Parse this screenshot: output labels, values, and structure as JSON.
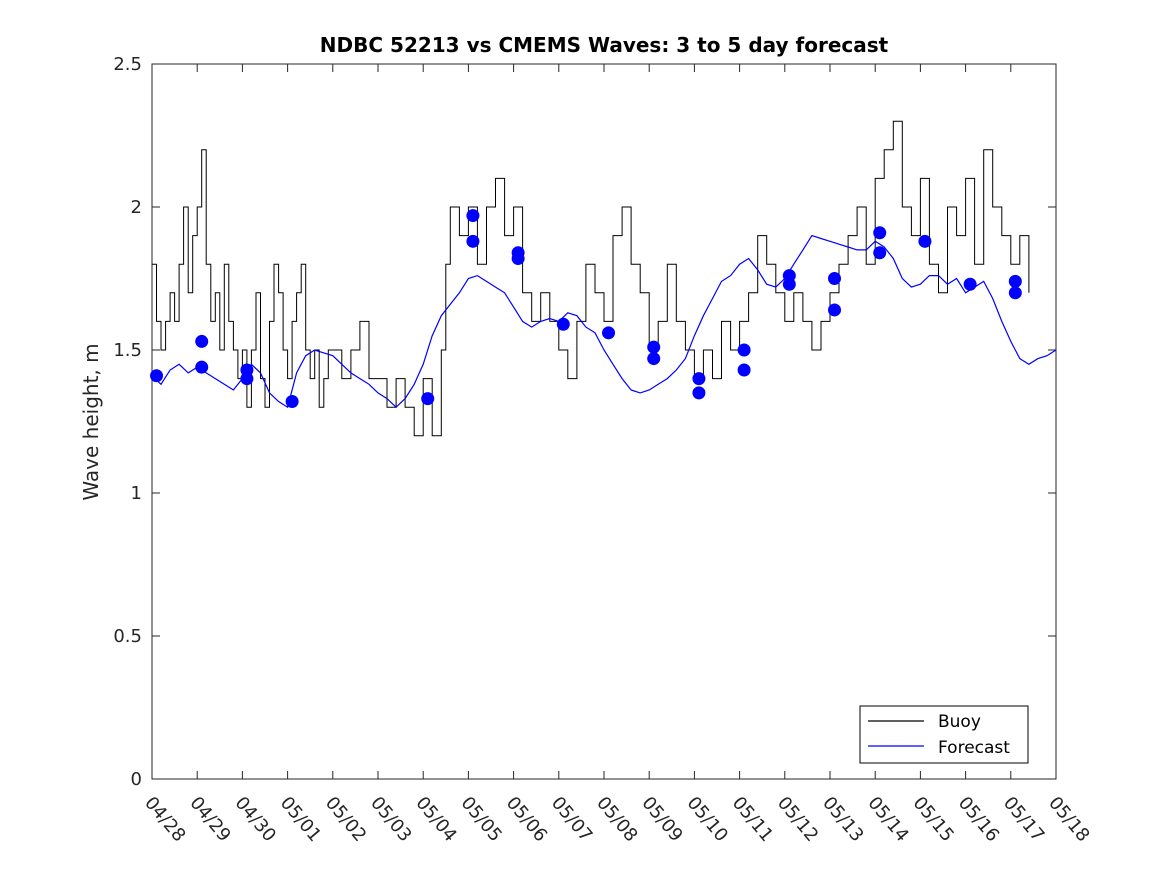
{
  "chart_data": {
    "type": "line",
    "title": "NDBC 52213 vs CMEMS Waves: 3 to 5 day forecast",
    "xlabel": "",
    "ylabel": "Wave height, m",
    "xlim": [
      "04/28",
      "05/18"
    ],
    "ylim": [
      0,
      2.5
    ],
    "yticks": [
      "0",
      "0.5",
      "1",
      "1.5",
      "2",
      "2.5"
    ],
    "xticks": [
      "04/28",
      "04/29",
      "04/30",
      "05/01",
      "05/02",
      "05/03",
      "05/04",
      "05/05",
      "05/06",
      "05/07",
      "05/08",
      "05/09",
      "05/10",
      "05/11",
      "05/12",
      "05/13",
      "05/14",
      "05/15",
      "05/16",
      "05/17",
      "05/18"
    ],
    "grid": false,
    "legend_position": "bottom-right",
    "colors": {
      "buoy": "#000000",
      "forecast": "#0000ff"
    },
    "series": [
      {
        "name": "Buoy",
        "x_days_from_04_28": [
          0.0,
          0.1,
          0.2,
          0.3,
          0.4,
          0.5,
          0.6,
          0.7,
          0.8,
          0.9,
          1.0,
          1.1,
          1.2,
          1.3,
          1.4,
          1.5,
          1.6,
          1.7,
          1.8,
          1.9,
          2.0,
          2.1,
          2.2,
          2.3,
          2.4,
          2.5,
          2.6,
          2.7,
          2.8,
          2.9,
          3.0,
          3.1,
          3.2,
          3.3,
          3.4,
          3.5,
          3.6,
          3.7,
          3.8,
          3.9,
          4.0,
          4.2,
          4.4,
          4.6,
          4.8,
          5.0,
          5.2,
          5.4,
          5.6,
          5.8,
          6.0,
          6.2,
          6.4,
          6.5,
          6.6,
          6.8,
          7.0,
          7.2,
          7.4,
          7.6,
          7.8,
          8.0,
          8.2,
          8.4,
          8.6,
          8.8,
          9.0,
          9.2,
          9.4,
          9.6,
          9.8,
          10.0,
          10.2,
          10.4,
          10.6,
          10.8,
          11.0,
          11.2,
          11.4,
          11.6,
          11.8,
          12.0,
          12.2,
          12.4,
          12.6,
          12.8,
          13.0,
          13.2,
          13.4,
          13.6,
          13.8,
          14.0,
          14.2,
          14.4,
          14.6,
          14.8,
          15.0,
          15.2,
          15.4,
          15.6,
          15.8,
          16.0,
          16.2,
          16.4,
          16.6,
          16.8,
          17.0,
          17.2,
          17.4,
          17.6,
          17.8,
          18.0,
          18.2,
          18.4,
          18.6,
          18.8,
          19.0,
          19.2,
          19.4
        ],
        "values": [
          1.8,
          1.6,
          1.5,
          1.6,
          1.7,
          1.6,
          1.8,
          2.0,
          1.7,
          1.9,
          2.0,
          2.2,
          1.8,
          1.6,
          1.7,
          1.5,
          1.8,
          1.6,
          1.5,
          1.4,
          1.5,
          1.3,
          1.5,
          1.7,
          1.4,
          1.3,
          1.6,
          1.8,
          1.7,
          1.5,
          1.4,
          1.6,
          1.7,
          1.8,
          1.5,
          1.4,
          1.5,
          1.3,
          1.4,
          1.5,
          1.5,
          1.4,
          1.5,
          1.6,
          1.4,
          1.4,
          1.3,
          1.4,
          1.3,
          1.2,
          1.4,
          1.2,
          1.5,
          1.8,
          2.0,
          1.9,
          2.0,
          1.8,
          2.0,
          2.1,
          1.9,
          2.0,
          1.7,
          1.6,
          1.7,
          1.6,
          1.5,
          1.4,
          1.6,
          1.8,
          1.7,
          1.6,
          1.9,
          2.0,
          1.8,
          1.7,
          1.5,
          1.6,
          1.8,
          1.6,
          1.5,
          1.4,
          1.5,
          1.4,
          1.6,
          1.5,
          1.6,
          1.7,
          1.9,
          1.8,
          1.7,
          1.6,
          1.7,
          1.6,
          1.5,
          1.6,
          1.7,
          1.8,
          1.9,
          2.0,
          1.8,
          2.1,
          2.2,
          2.3,
          2.0,
          1.9,
          2.1,
          1.8,
          1.7,
          2.0,
          1.9,
          2.1,
          1.8,
          2.2,
          2.0,
          1.9,
          1.8,
          1.9,
          1.7
        ]
      },
      {
        "name": "Forecast",
        "x_days_from_04_28": [
          0.0,
          0.2,
          0.4,
          0.6,
          0.8,
          1.0,
          1.2,
          1.4,
          1.6,
          1.8,
          2.0,
          2.2,
          2.4,
          2.6,
          2.8,
          3.0,
          3.2,
          3.4,
          3.6,
          3.8,
          4.0,
          4.2,
          4.4,
          4.6,
          4.8,
          5.0,
          5.2,
          5.4,
          5.6,
          5.8,
          6.0,
          6.2,
          6.4,
          6.6,
          6.8,
          7.0,
          7.2,
          7.4,
          7.6,
          7.8,
          8.0,
          8.2,
          8.4,
          8.6,
          8.8,
          9.0,
          9.2,
          9.4,
          9.6,
          9.8,
          10.0,
          10.2,
          10.4,
          10.6,
          10.8,
          11.0,
          11.2,
          11.4,
          11.6,
          11.8,
          12.0,
          12.2,
          12.4,
          12.6,
          12.8,
          13.0,
          13.2,
          13.4,
          13.6,
          13.8,
          14.0,
          14.2,
          14.4,
          14.6,
          14.8,
          15.0,
          15.2,
          15.4,
          15.6,
          15.8,
          16.0,
          16.2,
          16.4,
          16.6,
          16.8,
          17.0,
          17.2,
          17.4,
          17.6,
          17.8,
          18.0,
          18.2,
          18.4,
          18.6,
          18.8,
          19.0,
          19.2,
          19.4,
          19.6,
          19.8,
          20.0
        ],
        "values": [
          1.41,
          1.38,
          1.43,
          1.45,
          1.42,
          1.44,
          1.42,
          1.4,
          1.38,
          1.36,
          1.4,
          1.45,
          1.42,
          1.35,
          1.32,
          1.3,
          1.42,
          1.48,
          1.5,
          1.49,
          1.48,
          1.45,
          1.42,
          1.4,
          1.38,
          1.35,
          1.33,
          1.3,
          1.33,
          1.38,
          1.45,
          1.55,
          1.62,
          1.66,
          1.7,
          1.75,
          1.76,
          1.74,
          1.72,
          1.7,
          1.65,
          1.6,
          1.58,
          1.6,
          1.61,
          1.6,
          1.63,
          1.62,
          1.58,
          1.56,
          1.5,
          1.45,
          1.4,
          1.36,
          1.35,
          1.36,
          1.38,
          1.4,
          1.43,
          1.47,
          1.55,
          1.62,
          1.68,
          1.74,
          1.76,
          1.8,
          1.82,
          1.78,
          1.73,
          1.72,
          1.75,
          1.8,
          1.85,
          1.9,
          1.89,
          1.88,
          1.87,
          1.86,
          1.85,
          1.85,
          1.88,
          1.86,
          1.82,
          1.75,
          1.72,
          1.73,
          1.76,
          1.76,
          1.73,
          1.75,
          1.7,
          1.72,
          1.74,
          1.68,
          1.6,
          1.53,
          1.47,
          1.45,
          1.47,
          1.48,
          1.5
        ]
      }
    ],
    "forecast_markers": [
      {
        "x_days_from_04_28": 0.1,
        "y": 1.41
      },
      {
        "x_days_from_04_28": 1.1,
        "y": 1.53
      },
      {
        "x_days_from_04_28": 1.1,
        "y": 1.44
      },
      {
        "x_days_from_04_28": 2.1,
        "y": 1.43
      },
      {
        "x_days_from_04_28": 2.1,
        "y": 1.4
      },
      {
        "x_days_from_04_28": 3.1,
        "y": 1.32
      },
      {
        "x_days_from_04_28": 6.1,
        "y": 1.33
      },
      {
        "x_days_from_04_28": 7.1,
        "y": 1.97
      },
      {
        "x_days_from_04_28": 7.1,
        "y": 1.88
      },
      {
        "x_days_from_04_28": 8.1,
        "y": 1.84
      },
      {
        "x_days_from_04_28": 8.1,
        "y": 1.82
      },
      {
        "x_days_from_04_28": 9.1,
        "y": 1.59
      },
      {
        "x_days_from_04_28": 10.1,
        "y": 1.56
      },
      {
        "x_days_from_04_28": 11.1,
        "y": 1.51
      },
      {
        "x_days_from_04_28": 11.1,
        "y": 1.47
      },
      {
        "x_days_from_04_28": 12.1,
        "y": 1.4
      },
      {
        "x_days_from_04_28": 12.1,
        "y": 1.35
      },
      {
        "x_days_from_04_28": 13.1,
        "y": 1.5
      },
      {
        "x_days_from_04_28": 13.1,
        "y": 1.43
      },
      {
        "x_days_from_04_28": 14.1,
        "y": 1.76
      },
      {
        "x_days_from_04_28": 14.1,
        "y": 1.73
      },
      {
        "x_days_from_04_28": 15.1,
        "y": 1.75
      },
      {
        "x_days_from_04_28": 15.1,
        "y": 1.64
      },
      {
        "x_days_from_04_28": 16.1,
        "y": 1.91
      },
      {
        "x_days_from_04_28": 16.1,
        "y": 1.84
      },
      {
        "x_days_from_04_28": 17.1,
        "y": 1.88
      },
      {
        "x_days_from_04_28": 18.1,
        "y": 1.73
      },
      {
        "x_days_from_04_28": 19.1,
        "y": 1.74
      },
      {
        "x_days_from_04_28": 19.1,
        "y": 1.7
      }
    ]
  }
}
